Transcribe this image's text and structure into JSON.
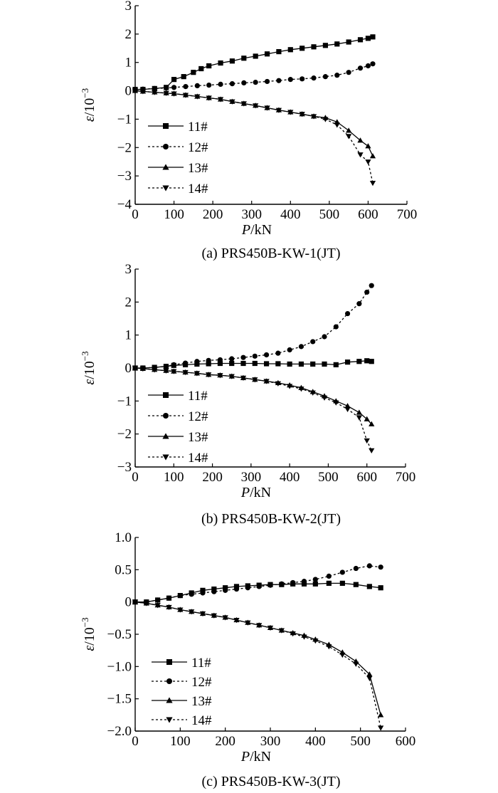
{
  "chart_data": [
    {
      "type": "line",
      "caption": "(a) PRS450B-KW-1(JT)",
      "xlabel_italic": "P",
      "xlabel_unit": "/kN",
      "ylabel_sym": "ε",
      "ylabel_rest": "/10",
      "ylabel_exp": "−3",
      "xlim": [
        0,
        700
      ],
      "ylim": [
        -4,
        3
      ],
      "xticks": [
        0,
        100,
        200,
        300,
        400,
        500,
        600,
        700
      ],
      "yticks": [
        -4,
        -3,
        -2,
        -1,
        0,
        1,
        2,
        3
      ],
      "ytick_labels": [
        "−4",
        "−3",
        "−2",
        "−1",
        "0",
        "1",
        "2",
        "3"
      ],
      "grid": false,
      "legend": "bottom-left",
      "series": [
        {
          "name": "11#",
          "marker": "square",
          "dash": false,
          "x": [
            0,
            20,
            50,
            80,
            100,
            125,
            150,
            170,
            190,
            220,
            250,
            280,
            310,
            340,
            370,
            400,
            430,
            460,
            490,
            520,
            550,
            580,
            600,
            612
          ],
          "y": [
            0.05,
            0.05,
            0.08,
            0.12,
            0.4,
            0.5,
            0.65,
            0.78,
            0.88,
            0.98,
            1.05,
            1.15,
            1.22,
            1.3,
            1.38,
            1.45,
            1.5,
            1.55,
            1.6,
            1.65,
            1.72,
            1.8,
            1.85,
            1.9
          ]
        },
        {
          "name": "12#",
          "marker": "circle",
          "dash": true,
          "x": [
            0,
            20,
            50,
            80,
            100,
            130,
            160,
            190,
            220,
            250,
            280,
            310,
            340,
            370,
            400,
            430,
            460,
            490,
            520,
            550,
            580,
            600,
            612
          ],
          "y": [
            0.05,
            0.06,
            0.08,
            0.1,
            0.12,
            0.15,
            0.18,
            0.2,
            0.23,
            0.25,
            0.28,
            0.3,
            0.33,
            0.36,
            0.4,
            0.42,
            0.45,
            0.5,
            0.55,
            0.65,
            0.8,
            0.88,
            0.95
          ]
        },
        {
          "name": "13#",
          "marker": "triangle-up",
          "dash": false,
          "x": [
            0,
            20,
            50,
            80,
            100,
            130,
            160,
            190,
            220,
            250,
            280,
            310,
            340,
            370,
            400,
            430,
            460,
            490,
            520,
            550,
            580,
            600,
            612
          ],
          "y": [
            0.0,
            -0.02,
            -0.05,
            -0.08,
            -0.1,
            -0.15,
            -0.2,
            -0.25,
            -0.3,
            -0.38,
            -0.45,
            -0.52,
            -0.6,
            -0.68,
            -0.75,
            -0.82,
            -0.9,
            -0.95,
            -1.1,
            -1.4,
            -1.75,
            -1.95,
            -2.3
          ]
        },
        {
          "name": "14#",
          "marker": "triangle-down",
          "dash": true,
          "x": [
            0,
            20,
            50,
            80,
            100,
            130,
            160,
            190,
            220,
            250,
            280,
            310,
            340,
            370,
            400,
            430,
            460,
            490,
            520,
            550,
            580,
            600,
            612
          ],
          "y": [
            0.0,
            -0.02,
            -0.05,
            -0.08,
            -0.1,
            -0.15,
            -0.2,
            -0.25,
            -0.3,
            -0.38,
            -0.45,
            -0.52,
            -0.6,
            -0.68,
            -0.75,
            -0.82,
            -0.9,
            -1.0,
            -1.2,
            -1.6,
            -2.25,
            -2.5,
            -3.25
          ]
        }
      ]
    },
    {
      "type": "line",
      "caption": "(b) PRS450B-KW-2(JT)",
      "xlabel_italic": "P",
      "xlabel_unit": "/kN",
      "ylabel_sym": "ε",
      "ylabel_rest": "/10",
      "ylabel_exp": "−3",
      "xlim": [
        0,
        700
      ],
      "ylim": [
        -3,
        3
      ],
      "xticks": [
        0,
        100,
        200,
        300,
        400,
        500,
        600,
        700
      ],
      "yticks": [
        -3,
        -2,
        -1,
        0,
        1,
        2,
        3
      ],
      "ytick_labels": [
        "−3",
        "−2",
        "−1",
        "0",
        "1",
        "2",
        "3"
      ],
      "grid": false,
      "legend": "bottom-left",
      "series": [
        {
          "name": "11#",
          "marker": "square",
          "dash": false,
          "x": [
            0,
            20,
            50,
            80,
            100,
            130,
            160,
            190,
            220,
            250,
            280,
            310,
            340,
            370,
            400,
            430,
            460,
            490,
            520,
            550,
            580,
            600,
            612
          ],
          "y": [
            0.0,
            0.0,
            0.02,
            0.05,
            0.08,
            0.1,
            0.12,
            0.13,
            0.14,
            0.14,
            0.14,
            0.14,
            0.13,
            0.13,
            0.12,
            0.12,
            0.12,
            0.12,
            0.1,
            0.18,
            0.2,
            0.22,
            0.2
          ]
        },
        {
          "name": "12#",
          "marker": "circle",
          "dash": true,
          "x": [
            0,
            20,
            50,
            80,
            100,
            130,
            160,
            190,
            220,
            250,
            280,
            310,
            340,
            370,
            400,
            430,
            460,
            490,
            520,
            550,
            580,
            600,
            612
          ],
          "y": [
            0.0,
            0.0,
            0.02,
            0.05,
            0.1,
            0.15,
            0.2,
            0.23,
            0.25,
            0.28,
            0.32,
            0.36,
            0.4,
            0.45,
            0.55,
            0.65,
            0.8,
            0.95,
            1.25,
            1.65,
            1.95,
            2.3,
            2.5
          ]
        },
        {
          "name": "13#",
          "marker": "triangle-up",
          "dash": false,
          "x": [
            0,
            20,
            50,
            80,
            100,
            130,
            160,
            190,
            220,
            250,
            280,
            310,
            340,
            370,
            400,
            430,
            460,
            490,
            520,
            550,
            580,
            600,
            612
          ],
          "y": [
            0.0,
            -0.02,
            -0.05,
            -0.08,
            -0.1,
            -0.13,
            -0.16,
            -0.2,
            -0.22,
            -0.25,
            -0.3,
            -0.35,
            -0.4,
            -0.45,
            -0.52,
            -0.6,
            -0.72,
            -0.85,
            -1.0,
            -1.15,
            -1.35,
            -1.55,
            -1.7
          ]
        },
        {
          "name": "14#",
          "marker": "triangle-down",
          "dash": true,
          "x": [
            0,
            20,
            50,
            80,
            100,
            130,
            160,
            190,
            220,
            250,
            280,
            310,
            340,
            370,
            400,
            430,
            460,
            490,
            520,
            550,
            580,
            600,
            612
          ],
          "y": [
            0.0,
            -0.02,
            -0.05,
            -0.08,
            -0.1,
            -0.13,
            -0.16,
            -0.2,
            -0.22,
            -0.25,
            -0.3,
            -0.35,
            -0.4,
            -0.47,
            -0.55,
            -0.63,
            -0.75,
            -0.9,
            -1.05,
            -1.25,
            -1.5,
            -2.2,
            -2.5
          ]
        }
      ]
    },
    {
      "type": "line",
      "caption": "(c) PRS450B-KW-3(JT)",
      "xlabel_italic": "P",
      "xlabel_unit": "/kN",
      "ylabel_sym": "ε",
      "ylabel_rest": "/10",
      "ylabel_exp": "−3",
      "xlim": [
        0,
        600
      ],
      "ylim": [
        -2.0,
        1.0
      ],
      "xticks": [
        0,
        100,
        200,
        300,
        400,
        500,
        600
      ],
      "yticks": [
        -2.0,
        -1.5,
        -1.0,
        -0.5,
        0,
        0.5,
        1.0
      ],
      "ytick_labels": [
        "−2.0",
        "−1.5",
        "−1.0",
        "−0.5",
        "0",
        "0.5",
        "1.0"
      ],
      "grid": false,
      "legend": "bottom-left",
      "series": [
        {
          "name": "11#",
          "marker": "square",
          "dash": false,
          "x": [
            0,
            25,
            50,
            75,
            100,
            125,
            150,
            175,
            200,
            225,
            250,
            275,
            300,
            325,
            350,
            375,
            400,
            430,
            460,
            490,
            520,
            545
          ],
          "y": [
            0.0,
            0.0,
            0.03,
            0.06,
            0.1,
            0.14,
            0.18,
            0.2,
            0.22,
            0.24,
            0.25,
            0.26,
            0.27,
            0.27,
            0.28,
            0.28,
            0.28,
            0.29,
            0.29,
            0.27,
            0.24,
            0.22
          ]
        },
        {
          "name": "12#",
          "marker": "circle",
          "dash": true,
          "x": [
            0,
            25,
            50,
            75,
            100,
            125,
            150,
            175,
            200,
            225,
            250,
            275,
            300,
            325,
            350,
            375,
            400,
            430,
            460,
            490,
            520,
            545
          ],
          "y": [
            0.0,
            0.0,
            0.03,
            0.06,
            0.1,
            0.12,
            0.14,
            0.16,
            0.18,
            0.2,
            0.22,
            0.24,
            0.26,
            0.28,
            0.3,
            0.32,
            0.35,
            0.4,
            0.46,
            0.52,
            0.56,
            0.54
          ]
        },
        {
          "name": "13#",
          "marker": "triangle-up",
          "dash": false,
          "x": [
            0,
            25,
            50,
            75,
            100,
            125,
            150,
            175,
            200,
            225,
            250,
            275,
            300,
            325,
            350,
            375,
            400,
            430,
            460,
            490,
            520,
            545
          ],
          "y": [
            0.0,
            -0.02,
            -0.05,
            -0.08,
            -0.12,
            -0.15,
            -0.18,
            -0.21,
            -0.24,
            -0.28,
            -0.32,
            -0.36,
            -0.4,
            -0.44,
            -0.48,
            -0.52,
            -0.58,
            -0.66,
            -0.78,
            -0.92,
            -1.12,
            -1.75
          ]
        },
        {
          "name": "14#",
          "marker": "triangle-down",
          "dash": true,
          "x": [
            0,
            25,
            50,
            75,
            100,
            125,
            150,
            175,
            200,
            225,
            250,
            275,
            300,
            325,
            350,
            375,
            400,
            430,
            460,
            490,
            520,
            545
          ],
          "y": [
            0.0,
            -0.02,
            -0.05,
            -0.08,
            -0.12,
            -0.15,
            -0.18,
            -0.21,
            -0.24,
            -0.28,
            -0.32,
            -0.36,
            -0.4,
            -0.44,
            -0.49,
            -0.54,
            -0.6,
            -0.69,
            -0.82,
            -0.96,
            -1.18,
            -1.95
          ]
        }
      ]
    }
  ]
}
